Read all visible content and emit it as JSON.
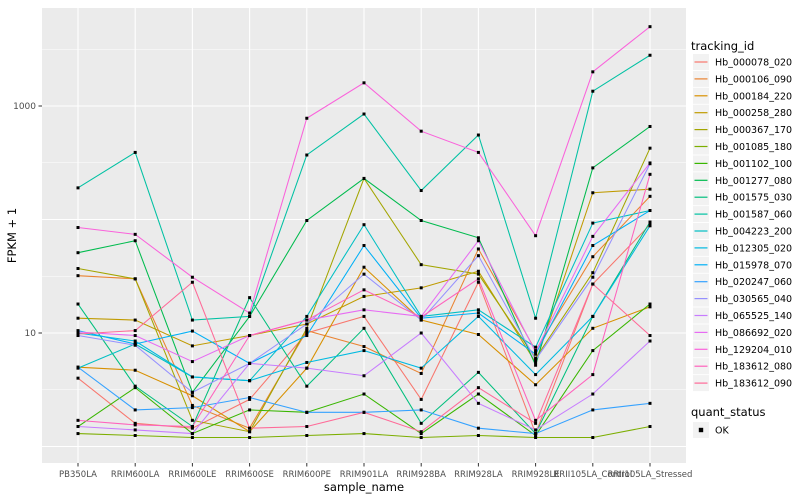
{
  "figure": {
    "background": "#FFFFFF",
    "panel_background": "#EBEBEB",
    "grid_color": "#FFFFFF",
    "tick_color": "#333333",
    "tick_label_color": "#4D4D4D",
    "title_color": "#000000",
    "legend_key_fill": "#F2F2F2",
    "point_color": "#000000"
  },
  "chart_data": {
    "type": "line",
    "title": "",
    "xlabel": "sample_name",
    "ylabel": "FPKM + 1",
    "y_scale": "log10",
    "ylim": [
      0.72,
      7300
    ],
    "y_ticks": [
      {
        "value": 10,
        "label": "10"
      },
      {
        "value": 1000,
        "label": "1000"
      }
    ],
    "y_gridlines_major": [
      1,
      10,
      100,
      1000
    ],
    "y_gridlines_minor": [
      3.162,
      31.62,
      316.2,
      3162
    ],
    "grid": "on",
    "legend_position": "right",
    "categories": [
      "PB350LA",
      "RRIM600LA",
      "RRIM600LE",
      "RRIM600SE",
      "RRIM600PE",
      "RRIM901LA",
      "RRIM928BA",
      "RRIM928LA",
      "RRIM928LE",
      "RRII105LA_Control",
      "RRII105LA_Stressed"
    ],
    "legend_title": "tracking_id",
    "series": [
      {
        "name": "Hb_000078_020",
        "color": "#F8766D",
        "values": [
          4,
          1.6,
          1.45,
          2.6,
          10,
          14,
          2.6,
          28,
          1.3,
          27,
          90
        ]
      },
      {
        "name": "Hb_000106_090",
        "color": "#EA8331",
        "values": [
          32,
          30,
          2.3,
          1.45,
          10.5,
          7.6,
          4.4,
          55,
          7,
          47,
          160
        ]
      },
      {
        "name": "Hb_000184_220",
        "color": "#D89000",
        "values": [
          5,
          4.7,
          2.8,
          1.35,
          4.9,
          38,
          13,
          9.7,
          3.5,
          11,
          17
        ]
      },
      {
        "name": "Hb_000258_280",
        "color": "#C09B00",
        "values": [
          13.5,
          13,
          7.7,
          9.5,
          12,
          21,
          25,
          35,
          5.5,
          172,
          185
        ]
      },
      {
        "name": "Hb_000367_170",
        "color": "#A3A500",
        "values": [
          37,
          30,
          1.7,
          1.35,
          11,
          230,
          40,
          33,
          6,
          34,
          425
        ]
      },
      {
        "name": "Hb_001085_180",
        "color": "#7CAE00",
        "values": [
          1.3,
          1.25,
          1.2,
          1.2,
          1.25,
          1.3,
          1.2,
          1.25,
          1.2,
          1.2,
          1.5
        ]
      },
      {
        "name": "Hb_001102_100",
        "color": "#39B600",
        "values": [
          1.5,
          3.3,
          1.3,
          2.1,
          2.0,
          2.9,
          1.3,
          2.9,
          1.25,
          7,
          18
        ]
      },
      {
        "name": "Hb_001277_080",
        "color": "#00BB4E",
        "values": [
          51,
          65,
          3.0,
          14,
          98,
          230,
          98,
          69,
          5.2,
          285,
          660
        ]
      },
      {
        "name": "Hb_001575_030",
        "color": "#00BF7D",
        "values": [
          18,
          3.4,
          1.5,
          20.5,
          3.4,
          11,
          1.6,
          4.5,
          1.3,
          14,
          95
        ]
      },
      {
        "name": "Hb_001587_060",
        "color": "#00C1A3",
        "values": [
          190,
          390,
          13,
          14,
          370,
          850,
          180,
          555,
          13.5,
          1350,
          2800
        ]
      },
      {
        "name": "Hb_004223_200",
        "color": "#00BFC4",
        "values": [
          4.9,
          8,
          4.1,
          3.8,
          14,
          90,
          14,
          16,
          7.5,
          93,
          120
        ]
      },
      {
        "name": "Hb_012305_020",
        "color": "#00BAE0",
        "values": [
          10,
          8.5,
          4.1,
          3.8,
          5.5,
          7,
          4.9,
          14,
          4.3,
          14,
          88
        ]
      },
      {
        "name": "Hb_015978_070",
        "color": "#00B0F6",
        "values": [
          10.5,
          8,
          10.4,
          5.4,
          9.5,
          59,
          13.5,
          15,
          6.5,
          59,
          120
        ]
      },
      {
        "name": "Hb_020247_060",
        "color": "#35A2FF",
        "values": [
          5,
          2.1,
          2.2,
          2.7,
          2.0,
          2.0,
          2.1,
          1.45,
          1.3,
          2.1,
          2.4
        ]
      },
      {
        "name": "Hb_030565_040",
        "color": "#9590FF",
        "values": [
          9.5,
          7.8,
          3.0,
          5.4,
          12,
          33,
          13,
          48,
          5.8,
          31,
          310
        ]
      },
      {
        "name": "Hb_065525_140",
        "color": "#C77CFF",
        "values": [
          1.5,
          1.4,
          1.3,
          5.4,
          4.9,
          4.2,
          10,
          2.4,
          1.4,
          2.9,
          8.5
        ]
      },
      {
        "name": "Hb_086692_020",
        "color": "#E76BF3",
        "values": [
          10.2,
          9.5,
          5.6,
          9.5,
          13,
          16,
          14,
          65,
          6.8,
          71,
          315
        ]
      },
      {
        "name": "Hb_129204_010",
        "color": "#FA62DB",
        "values": [
          85,
          74,
          31,
          15,
          780,
          1600,
          600,
          390,
          72,
          2000,
          5000
        ]
      },
      {
        "name": "Hb_183612_080",
        "color": "#FF62BC",
        "values": [
          1.7,
          1.55,
          1.5,
          9.5,
          13,
          24,
          13.8,
          30,
          1.7,
          4.3,
          250
        ]
      },
      {
        "name": "Hb_183612_090",
        "color": "#FF6A98",
        "values": [
          9.8,
          10.5,
          28,
          1.45,
          1.5,
          2.0,
          1.35,
          3.3,
          1.6,
          27,
          9.5
        ]
      }
    ],
    "legend2": {
      "title": "quant_status",
      "items": [
        {
          "label": "OK",
          "marker": "black-square"
        }
      ]
    }
  }
}
